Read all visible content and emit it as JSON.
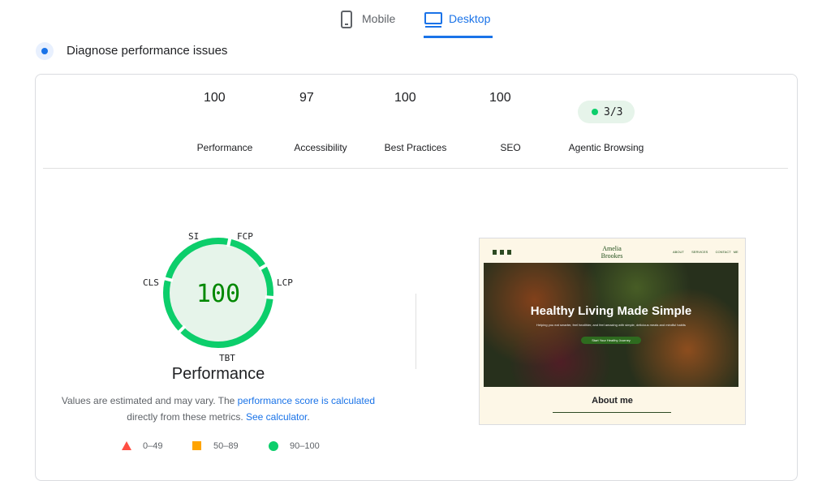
{
  "tabs": [
    {
      "label": "Mobile",
      "active": false
    },
    {
      "label": "Desktop",
      "active": true
    }
  ],
  "section_title": "Diagnose performance issues",
  "scores": [
    {
      "label": "Performance",
      "value": 100
    },
    {
      "label": "Accessibility",
      "value": 97
    },
    {
      "label": "Best Practices",
      "value": 100
    },
    {
      "label": "SEO",
      "value": 100
    }
  ],
  "agentic": {
    "label": "Agentic Browsing",
    "value": "3/3"
  },
  "main_gauge": {
    "value": 100,
    "label": "Performance",
    "metrics": [
      "SI",
      "FCP",
      "LCP",
      "TBT",
      "CLS"
    ]
  },
  "note": {
    "text1": "Values are estimated and may vary. The ",
    "link1": "performance score is calculated",
    "text2": "directly from these metrics. ",
    "link2": "See calculator",
    "text3": "."
  },
  "legend": [
    "0–49",
    "50–89",
    "90–100"
  ],
  "preview": {
    "brand_line1": "Amelia",
    "brand_line2": "Brookes",
    "nav": [
      "ABOUT",
      "SERVICES",
      "CONTACT ME"
    ],
    "hero_title": "Healthy Living Made Simple",
    "hero_subtitle": "Helping you eat smarter, feel healthier, and feel amazing with simple, delicious meals and mindful habits",
    "button": "Start Your Healthy Journey",
    "about": "About me"
  }
}
